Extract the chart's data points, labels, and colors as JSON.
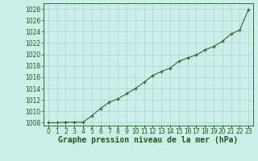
{
  "x": [
    0,
    1,
    2,
    3,
    4,
    5,
    6,
    7,
    8,
    9,
    10,
    11,
    12,
    13,
    14,
    15,
    16,
    17,
    18,
    19,
    20,
    21,
    22,
    23
  ],
  "y": [
    1008.0,
    1008.0,
    1008.1,
    1008.1,
    1008.1,
    1009.2,
    1010.5,
    1011.6,
    1012.2,
    1013.1,
    1014.0,
    1015.1,
    1016.3,
    1017.0,
    1017.6,
    1018.8,
    1019.4,
    1019.9,
    1020.8,
    1021.4,
    1022.3,
    1023.6,
    1024.3,
    1027.9
  ],
  "line_color": "#2d6a2d",
  "marker": "+",
  "marker_color": "#2d6a2d",
  "bg_color": "#cceee8",
  "grid_color": "#aad4ce",
  "title": "Graphe pression niveau de la mer (hPa)",
  "title_color": "#1a5c1a",
  "ylim_min": 1007.5,
  "ylim_max": 1029.0,
  "yticks": [
    1008,
    1010,
    1012,
    1014,
    1016,
    1018,
    1020,
    1022,
    1024,
    1026,
    1028
  ],
  "xticks": [
    0,
    1,
    2,
    3,
    4,
    5,
    6,
    7,
    8,
    9,
    10,
    11,
    12,
    13,
    14,
    15,
    16,
    17,
    18,
    19,
    20,
    21,
    22,
    23
  ],
  "tick_fontsize": 5.5,
  "title_fontsize": 7.0,
  "ytick_fontsize": 5.5
}
